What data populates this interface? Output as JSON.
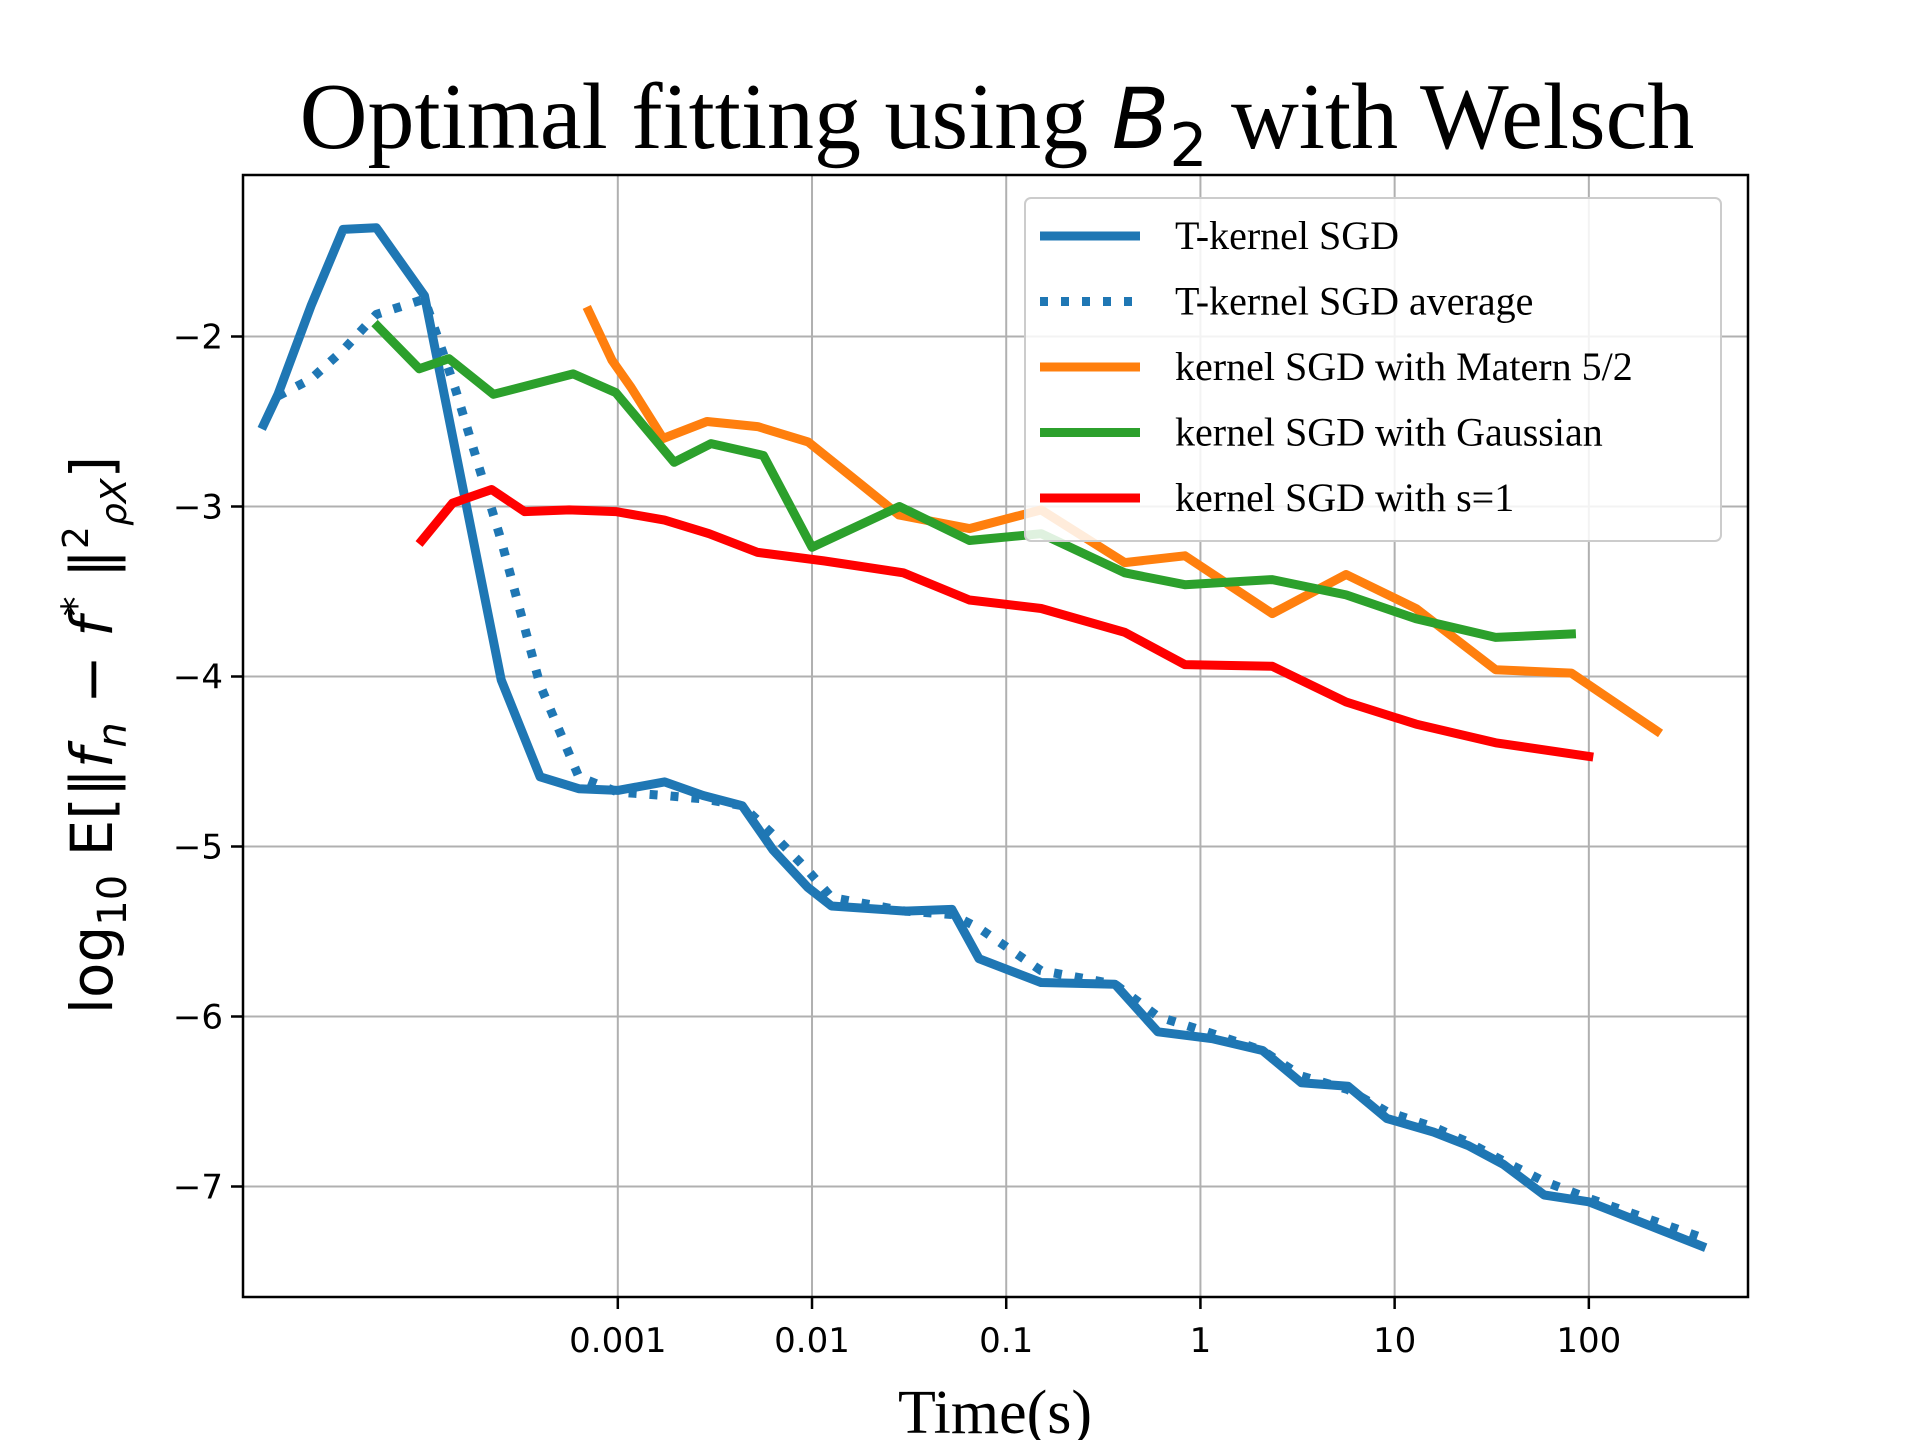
{
  "chart_data": {
    "type": "line",
    "title": "Optimal fitting using B2 with Welsch",
    "title_parts": {
      "prefix": "Optimal fitting using ",
      "math_base": "B",
      "math_sub": "2",
      "suffix": " with Welsch"
    },
    "xlabel": "Time(s)",
    "ylabel": "log10 E[‖fn − f*‖²ρX]",
    "x_scale": "log",
    "xlim": [
      1.175e-05,
      660
    ],
    "ylim": [
      -7.65,
      -1.05
    ],
    "x_ticks": [
      {
        "value": 0.001,
        "label": "0.001"
      },
      {
        "value": 0.01,
        "label": "0.01"
      },
      {
        "value": 0.1,
        "label": "0.1"
      },
      {
        "value": 1,
        "label": "1"
      },
      {
        "value": 10,
        "label": "10"
      },
      {
        "value": 100,
        "label": "100"
      }
    ],
    "y_ticks": [
      {
        "value": -2,
        "label": "−2"
      },
      {
        "value": -3,
        "label": "−3"
      },
      {
        "value": -4,
        "label": "−4"
      },
      {
        "value": -5,
        "label": "−5"
      },
      {
        "value": -6,
        "label": "−6"
      },
      {
        "value": -7,
        "label": "−7"
      }
    ],
    "grid": true,
    "legend_position": "top-right",
    "series": [
      {
        "name": "T-kernel SGD",
        "color": "#1f77b4",
        "style": "solid",
        "x": [
          1.5e-05,
          1.78e-05,
          2.63e-05,
          3.85e-05,
          5.71e-05,
          0.0001011,
          0.000251,
          0.000398,
          0.00063,
          0.001,
          0.00174,
          0.00275,
          0.00437,
          0.0063,
          0.0095,
          0.0126,
          0.0302,
          0.0525,
          0.0724,
          0.151,
          0.363,
          0.603,
          1.148,
          2.09,
          3.31,
          5.75,
          9.12,
          15.85,
          23.99,
          36.31,
          58.88,
          100.0,
          380.2
        ],
        "y": [
          -2.52,
          -2.34,
          -1.82,
          -1.37,
          -1.36,
          -1.76,
          -4.02,
          -4.59,
          -4.66,
          -4.67,
          -4.62,
          -4.7,
          -4.76,
          -5.02,
          -5.24,
          -5.35,
          -5.38,
          -5.37,
          -5.66,
          -5.8,
          -5.81,
          -6.09,
          -6.13,
          -6.2,
          -6.39,
          -6.41,
          -6.6,
          -6.68,
          -6.76,
          -6.87,
          -7.05,
          -7.09,
          -7.35
        ]
      },
      {
        "name": "T-kernel SGD average",
        "color": "#1f77b4",
        "style": "dotted",
        "x": [
          1.78e-05,
          2.63e-05,
          3.85e-05,
          5.71e-05,
          0.0001011,
          0.000145,
          0.000251,
          0.000398,
          0.00063,
          0.001,
          0.00174,
          0.00275,
          0.00437,
          0.0063,
          0.0095,
          0.0126,
          0.0302,
          0.0525,
          0.0724,
          0.151,
          0.363,
          0.603,
          1.148,
          2.09,
          3.31,
          5.75,
          9.12,
          15.85,
          23.99,
          36.31,
          58.88,
          100.0,
          380.2
        ],
        "y": [
          -2.35,
          -2.25,
          -2.08,
          -1.87,
          -1.78,
          -2.3,
          -3.2,
          -4.05,
          -4.59,
          -4.68,
          -4.7,
          -4.72,
          -4.76,
          -4.93,
          -5.14,
          -5.3,
          -5.38,
          -5.4,
          -5.48,
          -5.73,
          -5.81,
          -6.0,
          -6.1,
          -6.2,
          -6.35,
          -6.43,
          -6.56,
          -6.65,
          -6.74,
          -6.85,
          -6.97,
          -7.07,
          -7.3
        ]
      },
      {
        "name": "kernel SGD with Matern 5/2",
        "color": "#ff7f0e",
        "style": "solid",
        "x": [
          0.000708,
          0.000933,
          0.00117,
          0.00171,
          0.00288,
          0.00525,
          0.00955,
          0.017,
          0.028,
          0.0646,
          0.1514,
          0.4074,
          0.8318,
          2.344,
          5.623,
          12.88,
          33.11,
          81.28,
          223.9
        ],
        "y": [
          -1.85,
          -2.14,
          -2.3,
          -2.6,
          -2.5,
          -2.53,
          -2.62,
          -2.85,
          -3.05,
          -3.13,
          -3.02,
          -3.33,
          -3.29,
          -3.63,
          -3.4,
          -3.6,
          -3.96,
          -3.98,
          -4.32
        ]
      },
      {
        "name": "kernel SGD with Gaussian",
        "color": "#2ca02c",
        "style": "solid",
        "x": [
          5.8e-05,
          9.5e-05,
          0.000135,
          0.000229,
          0.000589,
          0.000977,
          0.00195,
          0.00302,
          0.00562,
          0.01,
          0.0282,
          0.0646,
          0.1514,
          0.4074,
          0.8318,
          2.344,
          5.623,
          12.88,
          33.11,
          81.28
        ],
        "y": [
          -1.94,
          -2.19,
          -2.13,
          -2.34,
          -2.22,
          -2.33,
          -2.74,
          -2.63,
          -2.7,
          -3.24,
          -3.0,
          -3.2,
          -3.16,
          -3.39,
          -3.46,
          -3.43,
          -3.52,
          -3.66,
          -3.77,
          -3.75
        ]
      },
      {
        "name": "kernel SGD with s=1",
        "color": "#ff0000",
        "style": "solid",
        "x": [
          9.8e-05,
          0.000141,
          0.000224,
          0.000331,
          0.000562,
          0.000977,
          0.00174,
          0.00295,
          0.00525,
          0.0115,
          0.0295,
          0.0646,
          0.1514,
          0.4074,
          0.8318,
          2.344,
          5.623,
          12.88,
          33.11,
          100.0
        ],
        "y": [
          -3.2,
          -2.98,
          -2.9,
          -3.03,
          -3.02,
          -3.03,
          -3.08,
          -3.16,
          -3.27,
          -3.32,
          -3.39,
          -3.55,
          -3.6,
          -3.74,
          -3.93,
          -3.94,
          -4.15,
          -4.28,
          -4.39,
          -4.47
        ]
      }
    ]
  }
}
